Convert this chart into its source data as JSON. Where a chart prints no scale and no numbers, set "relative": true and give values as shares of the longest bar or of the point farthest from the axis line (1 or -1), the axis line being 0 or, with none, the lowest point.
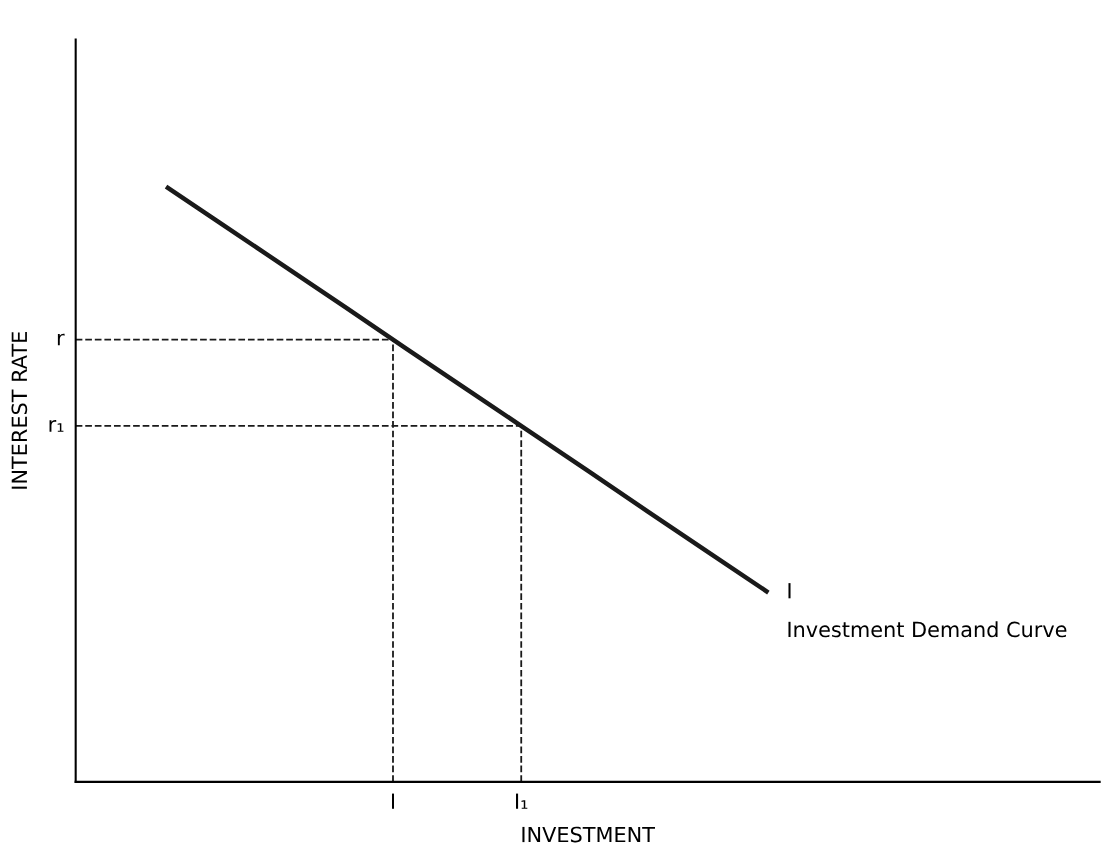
{
  "chart_data": {
    "type": "line",
    "relative": true,
    "xlabel": "INVESTMENT",
    "ylabel": "INTEREST RATE",
    "categories": [
      null,
      null,
      null,
      null,
      null,
      null,
      null,
      null,
      null,
      null,
      null,
      null,
      null,
      null,
      null,
      null,
      null
    ],
    "series": [
      {
        "name": "I",
        "color": "#1a1a1a",
        "values": [
          null,
          1,
          0.932,
          0.864,
          0.796,
          0.727,
          0.659,
          0.591,
          0.523,
          0.454,
          0.386,
          0.318,
          null,
          null,
          null,
          null,
          null
        ]
      }
    ],
    "ref_lines": [
      {
        "axis": "y",
        "value": 0.743,
        "label": "r",
        "line_style": "dashed",
        "color": "#1a1a1a"
      },
      {
        "axis": "y",
        "value": 0.598,
        "label": "r₁",
        "line_style": "dashed",
        "color": "#1a1a1a"
      }
    ],
    "annotations": [
      "I",
      "I₁",
      "Investment Demand Curve"
    ],
    "legend": false,
    "marker": "none",
    "line_style": "solid"
  }
}
